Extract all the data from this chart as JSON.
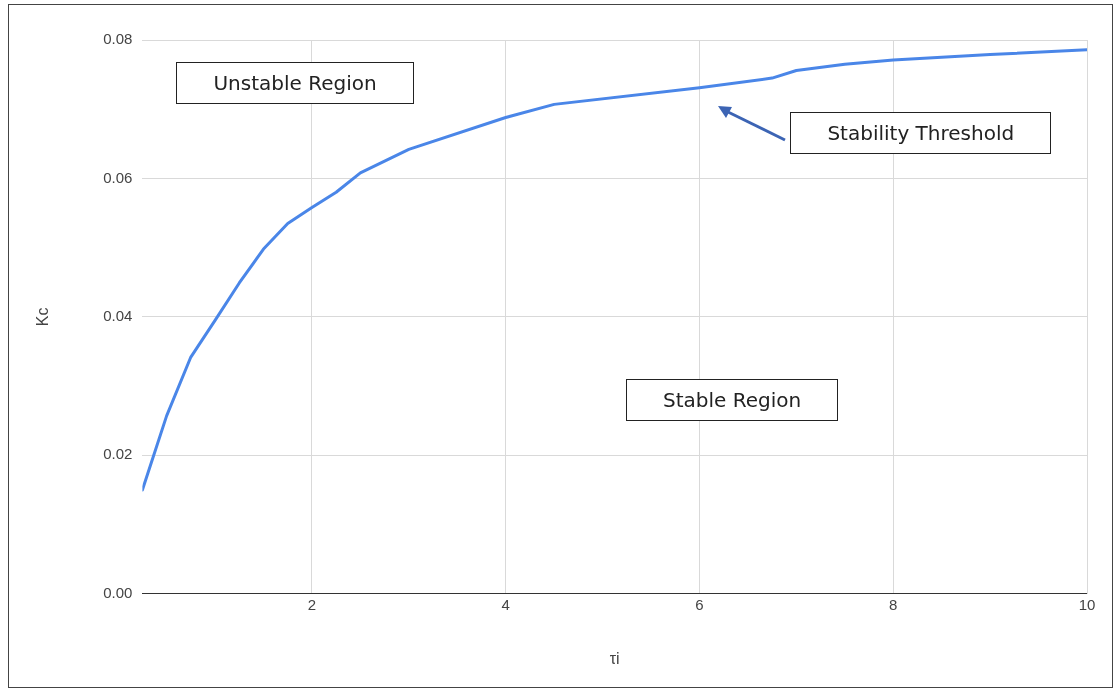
{
  "chart_data": {
    "type": "line",
    "xlabel": "τi",
    "ylabel": "Kc",
    "x": [
      0.25,
      0.5,
      0.75,
      1,
      1.25,
      1.5,
      1.75,
      2,
      2.25,
      2.5,
      3,
      4,
      4.5,
      6,
      6.75,
      7,
      7.5,
      8,
      9,
      10
    ],
    "series": [
      {
        "color": "#4a86e8",
        "values": [
          0.015,
          0.0257,
          0.0342,
          0.0395,
          0.0449,
          0.0498,
          0.0535,
          0.0558,
          0.058,
          0.0608,
          0.0642,
          0.0688,
          0.0707,
          0.0731,
          0.0745,
          0.0756,
          0.0765,
          0.0771,
          0.0779,
          0.0786
        ]
      }
    ],
    "xlim": [
      0.25,
      10
    ],
    "xticks": [
      2,
      4,
      6,
      8,
      10
    ],
    "ylim": [
      0,
      0.08
    ],
    "yticks": [
      {
        "value": 0,
        "label": "0.00"
      },
      {
        "value": 0.02,
        "label": "0.02"
      },
      {
        "value": 0.04,
        "label": "0.04"
      },
      {
        "value": 0.06,
        "label": "0.06"
      },
      {
        "value": 0.08,
        "label": "0.08"
      }
    ],
    "annotations": [
      "Unstable Region",
      "Stable Region",
      "Stability Threshold"
    ],
    "grid": true,
    "legend": false,
    "marker": "none",
    "line_style": "solid"
  }
}
